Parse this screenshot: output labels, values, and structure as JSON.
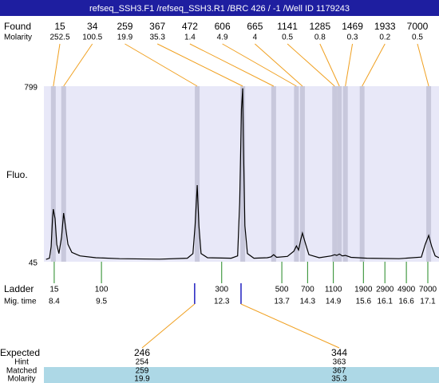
{
  "chart_data": {
    "type": "line",
    "title": "refseq_SSH3.F1 /refseq_SSH3.R1 /BRC 426 / -1 /Well ID 1179243",
    "y_label": "Fluo.",
    "xlim": [
      8.16,
      17.36
    ],
    "ylim": [
      45,
      799
    ],
    "yticks": [
      45,
      799
    ],
    "color": "#000000",
    "x": [
      8.21,
      8.29,
      8.33,
      8.36,
      8.38,
      8.42,
      8.46,
      8.51,
      8.57,
      8.62,
      8.66,
      8.72,
      8.81,
      9.0,
      9.37,
      9.92,
      10.85,
      11.5,
      11.63,
      11.68,
      11.73,
      11.77,
      11.82,
      11.97,
      12.52,
      12.67,
      12.72,
      12.76,
      12.79,
      12.8,
      12.84,
      12.9,
      13.05,
      13.36,
      13.45,
      13.51,
      13.58,
      13.83,
      13.98,
      14.04,
      14.09,
      14.14,
      14.18,
      14.24,
      14.33,
      14.57,
      14.85,
      14.93,
      14.98,
      15.04,
      15.11,
      15.18,
      15.31,
      15.68,
      16.43,
      16.95,
      17.04,
      17.12,
      17.19,
      17.27,
      17.36
    ],
    "values": [
      55,
      60,
      110,
      230,
      271,
      230,
      120,
      80,
      150,
      254,
      200,
      120,
      85,
      70,
      62,
      58,
      56,
      60,
      80,
      200,
      374,
      200,
      80,
      62,
      60,
      70,
      300,
      700,
      790,
      600,
      200,
      80,
      60,
      62,
      66,
      75,
      64,
      68,
      90,
      113,
      95,
      140,
      168,
      130,
      75,
      62,
      70,
      75,
      72,
      78,
      70,
      72,
      64,
      60,
      58,
      65,
      120,
      158,
      110,
      70,
      62
    ],
    "band_color": "#c8c8dc",
    "plot_color": "#e8e8f8",
    "found": {
      "label": "Found",
      "molarity_label": "Molarity",
      "line_color": "#f0a020",
      "sizes": [
        15,
        34,
        259,
        367,
        472,
        606,
        665,
        1141,
        1285,
        1469,
        1933,
        7000
      ],
      "molarity": [
        252.5,
        100.5,
        19.9,
        35.3,
        1.4,
        4.9,
        4,
        0.5,
        0.8,
        0.3,
        0.2,
        0.5
      ],
      "times": [
        8.38,
        8.62,
        11.73,
        12.79,
        13.51,
        14.04,
        14.18,
        14.93,
        15.04,
        15.18,
        15.57,
        17.12
      ]
    },
    "ladder": {
      "label": "Ladder",
      "time_label": "Mig. time",
      "line_color": "#228822",
      "sizes": [
        15,
        100,
        300,
        500,
        700,
        1100,
        1900,
        2900,
        4900,
        7000
      ],
      "times": [
        8.4,
        9.5,
        12.3,
        13.7,
        14.3,
        14.9,
        15.6,
        16.1,
        16.6,
        17.1
      ]
    },
    "expected": {
      "label": "Expected",
      "hint_label": "Hint",
      "matched_label": "Matched",
      "molarity_label": "Molarity",
      "marker_color": "#2020c0",
      "sizes": [
        246,
        344
      ],
      "hint": [
        254,
        363
      ],
      "matched": [
        259,
        367
      ],
      "molarity": [
        19.9,
        35.3
      ],
      "times": [
        11.67,
        12.75
      ]
    }
  }
}
